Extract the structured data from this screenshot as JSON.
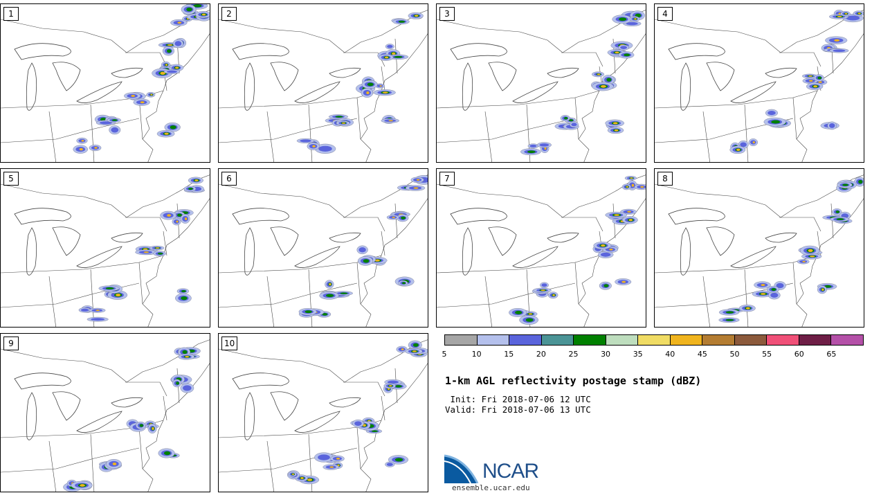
{
  "panels": [
    {
      "label": "1"
    },
    {
      "label": "2"
    },
    {
      "label": "3"
    },
    {
      "label": "4"
    },
    {
      "label": "5"
    },
    {
      "label": "6"
    },
    {
      "label": "7"
    },
    {
      "label": "8"
    },
    {
      "label": "9"
    },
    {
      "label": "10"
    }
  ],
  "colorbar": {
    "colors": [
      "#a6a6a6",
      "#b4c0ec",
      "#5a64dc",
      "#4b9496",
      "#008000",
      "#bedebe",
      "#f0dc64",
      "#f0b41e",
      "#b47d32",
      "#8c5a3c",
      "#f05078",
      "#6e1e46",
      "#b450a8"
    ],
    "ticks": [
      "5",
      "10",
      "15",
      "20",
      "25",
      "30",
      "35",
      "40",
      "45",
      "50",
      "55",
      "60",
      "65"
    ]
  },
  "info": {
    "title": "1-km AGL reflectivity postage stamp (dBZ)",
    "init": " Init: Fri 2018-07-06 12 UTC",
    "valid": "Valid: Fri 2018-07-06 13 UTC"
  },
  "logo": {
    "text": "NCAR",
    "site": "ensemble.ucar.edu",
    "color": "#1f4f8a"
  }
}
